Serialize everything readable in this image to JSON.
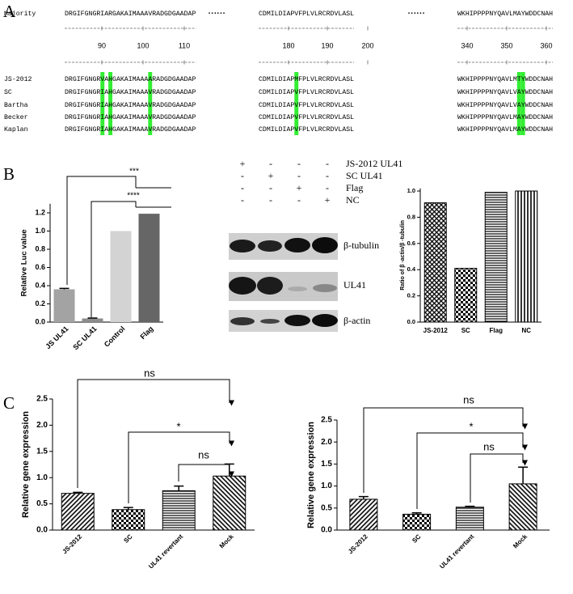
{
  "panel_labels": [
    "A",
    "B",
    "C"
  ],
  "alignment": {
    "majority": {
      "name": "Majority",
      "blocks": [
        "DRGIFGNGRIARGAKAIMAAAVRADGDGAADAP",
        "CDMILDIAPVFPLVLRCRDVLASL",
        "WKHIPPPPNYQAVLMAYWDDCNAH"
      ]
    },
    "separator": "••••••",
    "ruler_ticks": [
      [
        90,
        100,
        110
      ],
      [
        180,
        190,
        200
      ],
      [
        340,
        350,
        360
      ]
    ],
    "rows": [
      {
        "name": "JS-2012",
        "blocks": [
          "DRGIFGNGRVAHGAKAIMAAAARADGDGAADAP",
          "CDMILDIAPMFPLVLRCRDVLASL",
          "WKHIPPPPNYQAVLMTYWDDCNAH"
        ]
      },
      {
        "name": "SC",
        "blocks": [
          "DRGIFGNGRIAHGAKAIMAAAVRADGDGAADAP",
          "CDMILDIAPVFPLVLRCRDVLASL",
          "WKHIPPPPNYQAVLVAYWDDCNAH"
        ]
      },
      {
        "name": "Bartha",
        "blocks": [
          "DRGIFGNGRIAHGAKAIMAAAVRADGDGAADAP",
          "CDMILDIAPVFPLVLRCRDVLASL",
          "WKHIPPPPNYQAVLVAYWDDCNAH"
        ]
      },
      {
        "name": "Becker",
        "blocks": [
          "DRGIFGNGRIAHGAKAIMAAAVRADGDGAADAP",
          "CDMILDIAPVFPLVLRCRDVLASL",
          "WKHIPPPPNYQAVLMAYWDDCNAH"
        ]
      },
      {
        "name": "Kaplan",
        "blocks": [
          "DRGIFGNGRIAHGAKAIMAAAVRADGDGAADAP",
          "CDMILDIAPVFPLVLRCRDVLASL",
          "WKHIPPPPNYQAVLMAYWDDCNAH"
        ]
      }
    ]
  },
  "blot": {
    "conditions": [
      "JS-2012 UL41",
      "SC UL41",
      "Flag",
      "NC"
    ],
    "signs": [
      [
        "+",
        "-",
        "-",
        "-"
      ],
      [
        "-",
        "+",
        "-",
        "-"
      ],
      [
        "-",
        "-",
        "+",
        "-"
      ],
      [
        "-",
        "-",
        "-",
        "+"
      ]
    ],
    "bands": [
      "β-tubulin",
      "UL41",
      "β-actin"
    ]
  },
  "chart_data": [
    {
      "type": "bar",
      "ylabel": "Relative Luc value",
      "categories": [
        "JS UL41",
        "SC UL41",
        "Control",
        "Flag"
      ],
      "values": [
        0.36,
        0.04,
        1.0,
        1.19
      ],
      "errors": [
        0.01,
        0.005,
        null,
        null
      ],
      "colors": [
        "#a3a3a3",
        "#8c8c8c",
        "#d3d3d3",
        "#666666"
      ],
      "ylim": [
        0,
        1.3
      ],
      "yticks": [
        {
          "value": 0,
          "label": "0.0"
        },
        0.2,
        0.4,
        0.6,
        0.8,
        {
          "value": 1,
          "label": "1.0"
        },
        1.2
      ],
      "annotations": [
        "***",
        "****"
      ]
    },
    {
      "type": "bar",
      "ylabel": "Ratio of β -actin/β -tubulin",
      "categories": [
        "JS-2012",
        "SC",
        "Flag",
        "NC"
      ],
      "values": [
        0.91,
        0.41,
        0.99,
        1.0
      ],
      "ylim": [
        0,
        1.02
      ],
      "yticks": [
        {
          "value": 0,
          "label": "0.0"
        },
        0.2,
        0.4,
        0.6,
        0.8,
        {
          "value": 1,
          "label": "1.0"
        }
      ]
    },
    {
      "type": "bar",
      "ylabel": "Relative gene expression",
      "categories": [
        "JS-2012",
        "SC",
        "UL41 revertant",
        "Mock"
      ],
      "values": [
        0.7,
        0.39,
        0.75,
        1.03
      ],
      "errors": [
        0.02,
        0.04,
        0.09,
        0.23
      ],
      "ylim": [
        0,
        2.5
      ],
      "yticks": [
        {
          "value": 0,
          "label": "0.0"
        },
        0.5,
        {
          "value": 1,
          "label": "1.0"
        },
        1.5,
        {
          "value": 2,
          "label": "2.0"
        },
        2.5
      ],
      "annotations": [
        "ns",
        "*",
        "ns"
      ]
    },
    {
      "type": "bar",
      "ylabel": "Relative gene expression",
      "categories": [
        "JS-2012",
        "SC",
        "UL41 revertant",
        "Mock"
      ],
      "values": [
        0.7,
        0.36,
        0.52,
        1.05
      ],
      "errors": [
        0.06,
        0.03,
        0.02,
        0.38
      ],
      "ylim": [
        0,
        2.5
      ],
      "yticks": [
        {
          "value": 0,
          "label": "0.0"
        },
        0.5,
        {
          "value": 1,
          "label": "1.0"
        },
        1.5,
        {
          "value": 2,
          "label": "2.0"
        },
        2.5
      ],
      "annotations": [
        "ns",
        "*",
        "ns"
      ]
    }
  ]
}
